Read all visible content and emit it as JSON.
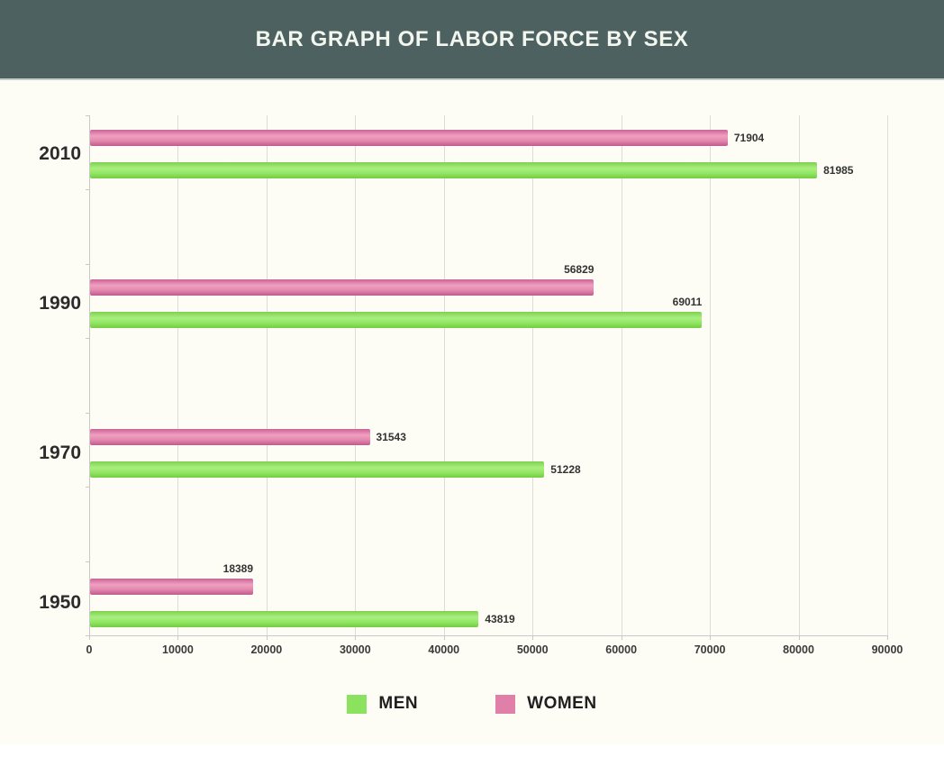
{
  "colors": {
    "header_bg": "#4d6161",
    "page_bg": "#fdfdf6",
    "gridline": "#dcdcdc",
    "men": "#8be25e",
    "women": "#e07fa8",
    "value_text": "#333333"
  },
  "chart_data": {
    "type": "bar",
    "orientation": "horizontal",
    "title": "BAR GRAPH OF LABOR FORCE BY SEX",
    "categories": [
      "2010",
      "1990",
      "1970",
      "1950"
    ],
    "series": [
      {
        "name": "MEN",
        "color": "#8be25e",
        "gradient": [
          "#7ed04e",
          "#a9ef80",
          "#92e663",
          "#74cc41"
        ],
        "values": [
          81985,
          69011,
          51228,
          43819
        ],
        "label_positions": [
          "right",
          "above",
          "right",
          "right"
        ]
      },
      {
        "name": "WOMEN",
        "color": "#e07fa8",
        "gradient": [
          "#cb6497",
          "#f0a0c0",
          "#e288ae",
          "#c25a8d"
        ],
        "values": [
          71904,
          56829,
          31543,
          18389
        ],
        "label_positions": [
          "right",
          "above",
          "right",
          "above"
        ]
      }
    ],
    "x_ticks": [
      "0",
      "10000",
      "20000",
      "30000",
      "40000",
      "50000",
      "60000",
      "70000",
      "80000",
      "90000"
    ],
    "xlim": [
      0,
      90000
    ],
    "grid": true,
    "legend_position": "bottom"
  }
}
